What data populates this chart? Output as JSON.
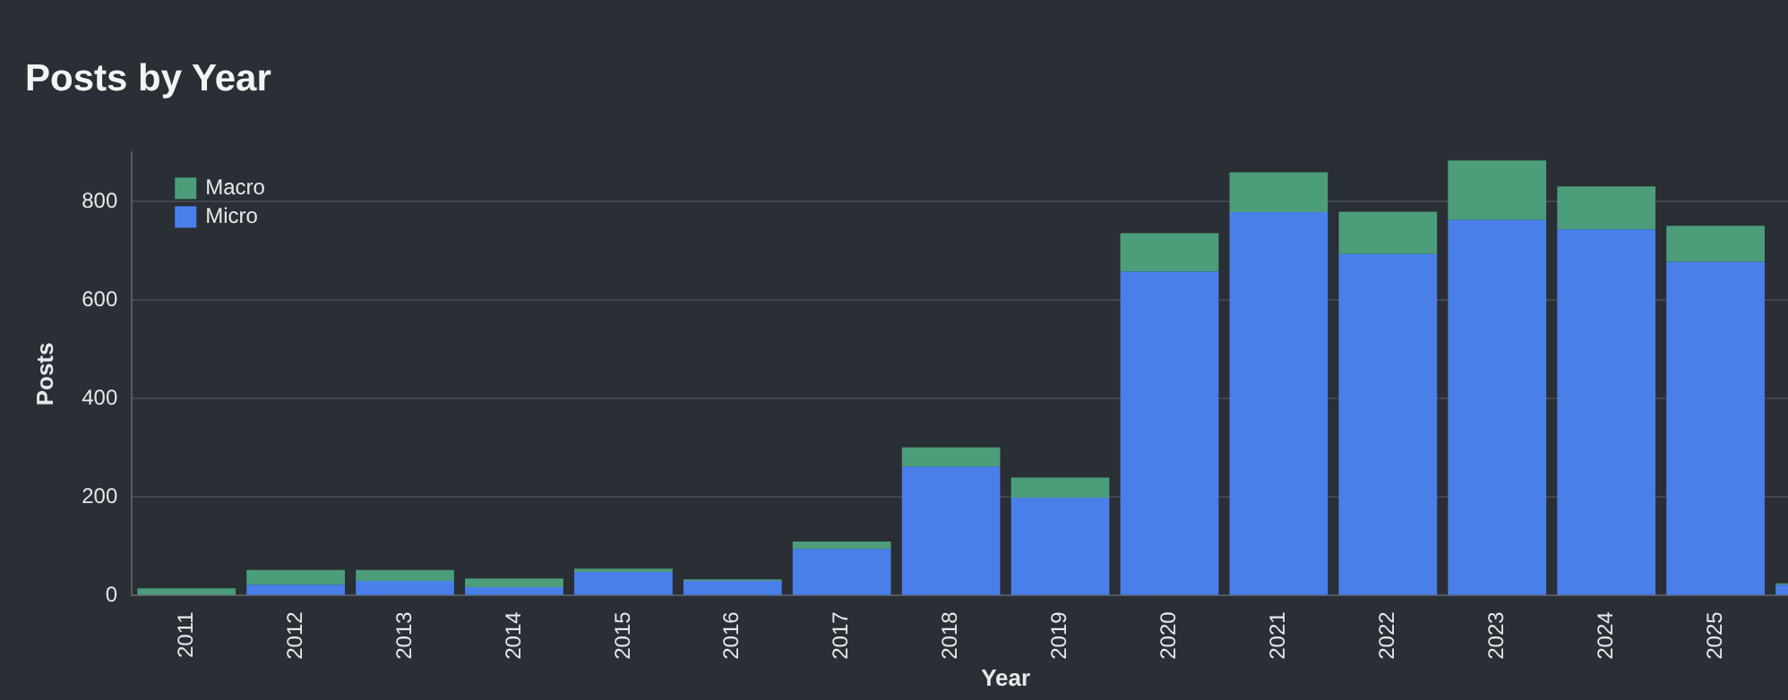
{
  "chart_data": {
    "type": "bar",
    "title": "Posts by Year",
    "xlabel": "Year",
    "ylabel": "Posts",
    "categories": [
      "2011",
      "2012",
      "2013",
      "2014",
      "2015",
      "2016",
      "2017",
      "2018",
      "2019",
      "2020",
      "2021",
      "2022",
      "2023",
      "2024",
      "2025",
      null
    ],
    "stacked": true,
    "series": [
      {
        "name": "Micro",
        "color": "#4a7fea",
        "values": [
          0,
          22,
          30,
          17,
          48,
          30,
          95,
          262,
          199,
          658,
          779,
          694,
          763,
          744,
          678,
          22
        ]
      },
      {
        "name": "Macro",
        "color": "#4c9e7a",
        "values": [
          15,
          30,
          22,
          18,
          7,
          3,
          15,
          39,
          41,
          78,
          81,
          86,
          121,
          87,
          73,
          3
        ]
      }
    ],
    "ylim": [
      0,
      900
    ],
    "yticks": [
      0,
      200,
      400,
      600,
      800
    ],
    "grid": "y",
    "legend": "top left"
  }
}
